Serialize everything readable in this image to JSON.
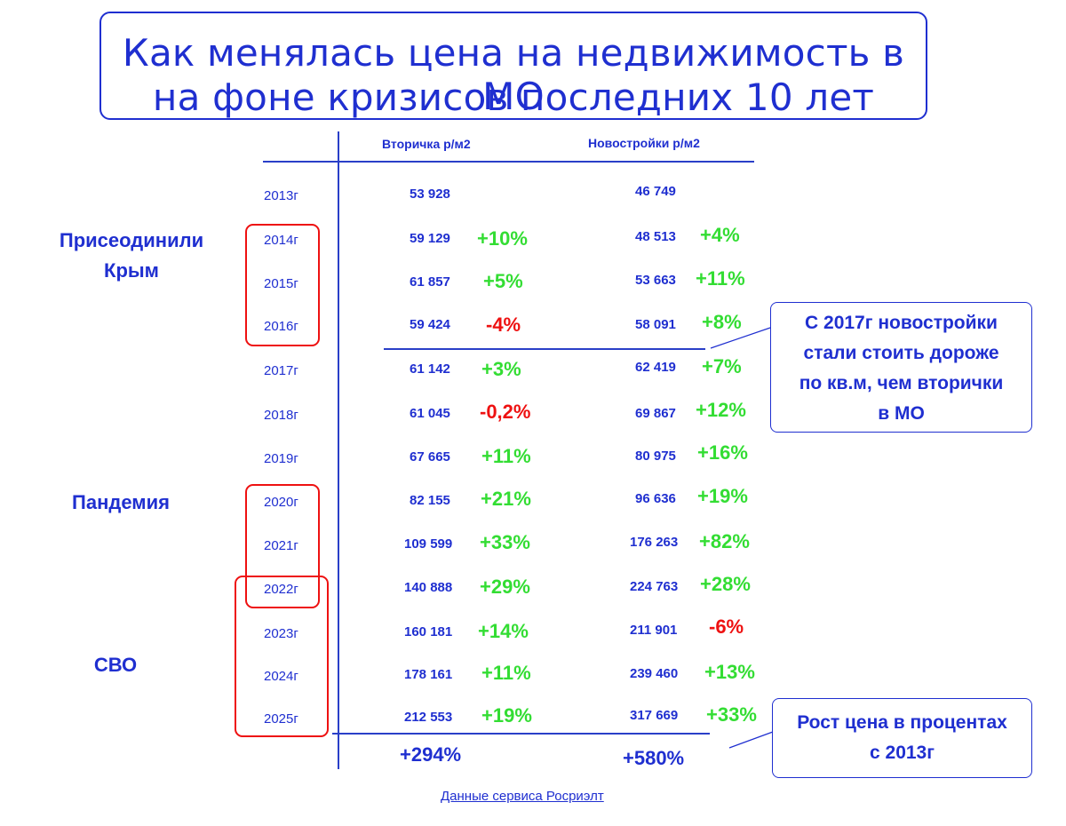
{
  "title": {
    "line1": "Как менялась цена на недвижимость в МО",
    "line2": "на фоне кризисов последних 10 лет"
  },
  "columns": {
    "secondary": "Вторичка  р/м2",
    "new": "Новостройки  р/м2"
  },
  "rows": [
    {
      "year": "2013г",
      "secondary": "53 928",
      "secondary_change": "",
      "new": "46 749",
      "new_change": ""
    },
    {
      "year": "2014г",
      "secondary": "59 129",
      "secondary_change": "+10%",
      "new": "48 513",
      "new_change": "+4%"
    },
    {
      "year": "2015г",
      "secondary": "61 857",
      "secondary_change": "+5%",
      "new": "53 663",
      "new_change": "+11%"
    },
    {
      "year": "2016г",
      "secondary": "59 424",
      "secondary_change": "-4%",
      "new": "58 091",
      "new_change": "+8%"
    },
    {
      "year": "2017г",
      "secondary": "61 142",
      "secondary_change": "+3%",
      "new": "62 419",
      "new_change": "+7%"
    },
    {
      "year": "2018г",
      "secondary": "61 045",
      "secondary_change": "-0,2%",
      "new": "69 867",
      "new_change": "+12%"
    },
    {
      "year": "2019г",
      "secondary": "67 665",
      "secondary_change": "+11%",
      "new": "80 975",
      "new_change": "+16%"
    },
    {
      "year": "2020г",
      "secondary": "82 155",
      "secondary_change": "+21%",
      "new": "96 636",
      "new_change": "+19%"
    },
    {
      "year": "2021г",
      "secondary": "109 599",
      "secondary_change": "+33%",
      "new": "176 263",
      "new_change": "+82%"
    },
    {
      "year": "2022г",
      "secondary": "140 888",
      "secondary_change": "+29%",
      "new": "224 763",
      "new_change": "+28%"
    },
    {
      "year": "2023г",
      "secondary": "160 181",
      "secondary_change": "+14%",
      "new": "211 901",
      "new_change": "-6%"
    },
    {
      "year": "2024г",
      "secondary": "178 161",
      "secondary_change": "+11%",
      "new": "239 460",
      "new_change": "+13%"
    },
    {
      "year": "2025г",
      "secondary": "212 553",
      "secondary_change": "+19%",
      "new": "317 669",
      "new_change": "+33%"
    }
  ],
  "totals": {
    "secondary": "+294%",
    "new": "+580%"
  },
  "events": {
    "crimea_line1": "Присеодинили",
    "crimea_line2": "Крым",
    "pandemic": "Пандемия",
    "svo": "СВО"
  },
  "notes": {
    "new_more_expensive": [
      "С 2017г новостройки",
      "стали стоить дороже",
      "по кв.м, чем вторички",
      "в МО"
    ],
    "growth": [
      "Рост цена в процентах",
      "с 2013г"
    ]
  },
  "source": "Данные сервиса Росриэлт",
  "colors": {
    "text": "#1f2fd0",
    "positive": "#33dd33",
    "negative": "#ee1111",
    "highlight_box": "#ee1111"
  }
}
